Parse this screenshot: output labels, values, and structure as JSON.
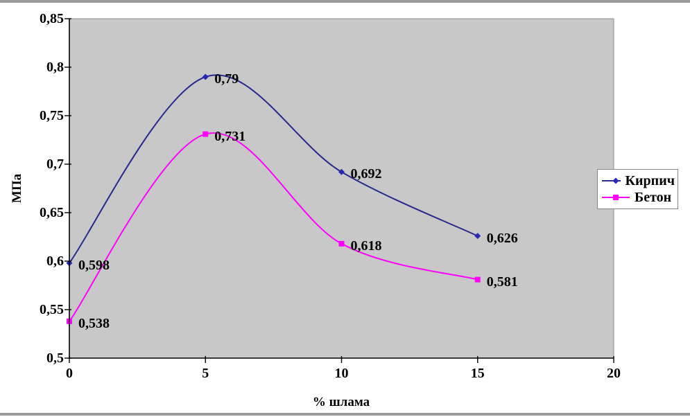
{
  "page": {
    "background": "#ffffff",
    "top_border_color": "#9b9b9b",
    "bottom_border_color": "#9b9b9b"
  },
  "chart_data": {
    "type": "line",
    "title": "",
    "xlabel": "% шлама",
    "ylabel": "МПа",
    "x": [
      0,
      5,
      10,
      15
    ],
    "xlim": [
      0,
      20
    ],
    "ylim": [
      0.5,
      0.85
    ],
    "xticks": [
      0,
      5,
      10,
      15,
      20
    ],
    "yticks": [
      0.5,
      0.55,
      0.6,
      0.65,
      0.7,
      0.75,
      0.8,
      0.85
    ],
    "decimal_separator": ",",
    "grid": false,
    "smooth_lines": true,
    "data_labels": true,
    "legend_position": "right",
    "plot_bg_color": "#c8c8c8",
    "plot_border_color": "#8c8c8c",
    "axis_color": "#000000",
    "series": [
      {
        "name": "Кирпич",
        "color": "#28288f",
        "marker_color": "#2929b8",
        "marker": "diamond",
        "values": [
          0.598,
          0.79,
          0.692,
          0.626
        ],
        "labels": [
          "0,598",
          "0,79",
          "0,692",
          "0,626"
        ]
      },
      {
        "name": "Бетон",
        "color": "#ff00ff",
        "marker_color": "#ff00ff",
        "marker": "square",
        "values": [
          0.538,
          0.731,
          0.618,
          0.581
        ],
        "labels": [
          "0,538",
          "0,731",
          "0,618",
          "0,581"
        ]
      }
    ]
  }
}
